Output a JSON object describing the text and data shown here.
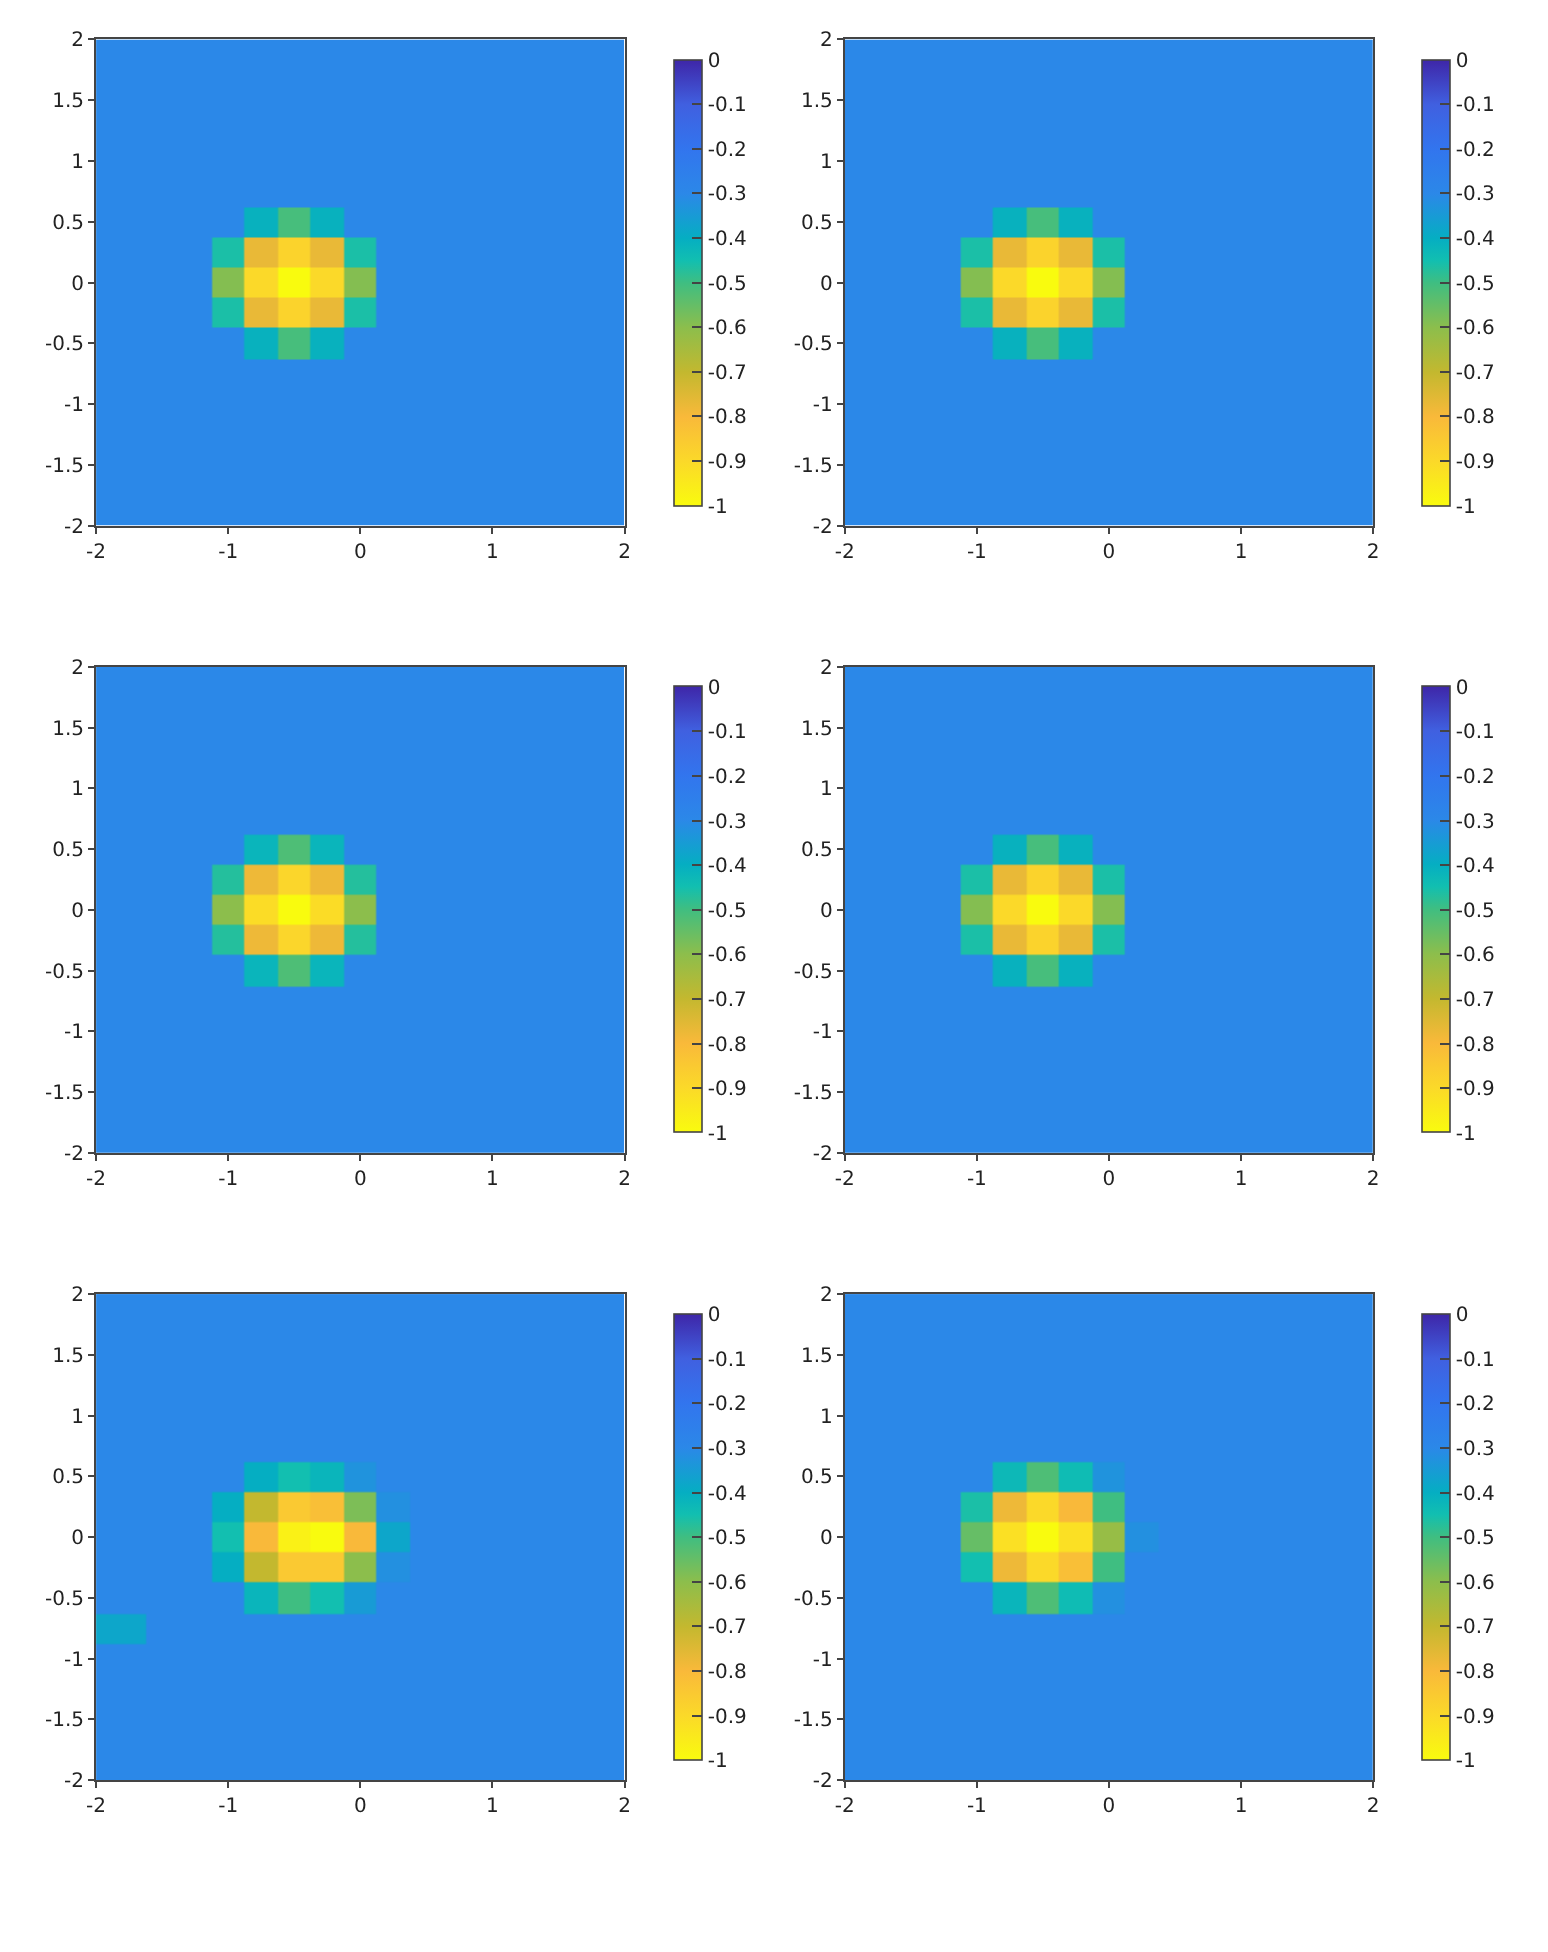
{
  "chart_data": [
    {
      "type": "heatmap",
      "x": [
        -1.75,
        -1.5,
        -1.25,
        -1,
        -0.75,
        -0.5,
        -0.25,
        0,
        0.25,
        0.5,
        0.75,
        1,
        1.25,
        1.5,
        1.75
      ],
      "y": [
        -1.75,
        -1.5,
        -1.25,
        -1,
        -0.75,
        -0.5,
        -0.25,
        0,
        0.25,
        0.5,
        0.75,
        1,
        1.25,
        1.5,
        1.75
      ],
      "xlim": [
        -2,
        2
      ],
      "ylim": [
        -2,
        2
      ],
      "xticks": [
        -2,
        -1,
        0,
        1,
        2
      ],
      "yticks": [
        -2,
        -1.5,
        -1,
        -0.5,
        0,
        0.5,
        1,
        1.5,
        2
      ],
      "clim": [
        -1,
        0
      ],
      "cticks": [
        0,
        -0.1,
        -0.2,
        -0.3,
        -0.4,
        -0.5,
        -0.6,
        -0.7,
        -0.8,
        -0.9,
        -1
      ],
      "cells": [
        [
          -0.3,
          -0.3,
          -0.3,
          -0.3,
          -0.3,
          -0.3,
          -0.3,
          -0.3,
          -0.3,
          -0.3,
          -0.3,
          -0.3,
          -0.3,
          -0.3,
          -0.3
        ],
        [
          -0.3,
          -0.3,
          -0.3,
          -0.3,
          -0.3,
          -0.3,
          -0.3,
          -0.3,
          -0.3,
          -0.3,
          -0.3,
          -0.3,
          -0.3,
          -0.3,
          -0.3
        ],
        [
          -0.3,
          -0.3,
          -0.3,
          -0.3,
          -0.3,
          -0.3,
          -0.3,
          -0.3,
          -0.3,
          -0.3,
          -0.3,
          -0.3,
          -0.3,
          -0.3,
          -0.3
        ],
        [
          -0.3,
          -0.3,
          -0.3,
          -0.3,
          -0.3,
          -0.3,
          -0.3,
          -0.3,
          -0.3,
          -0.3,
          -0.3,
          -0.3,
          -0.3,
          -0.3,
          -0.3
        ],
        [
          -0.3,
          -0.3,
          -0.3,
          -0.3,
          -0.3,
          -0.3,
          -0.3,
          -0.3,
          -0.3,
          -0.3,
          -0.3,
          -0.3,
          -0.3,
          -0.3,
          -0.3
        ],
        [
          -0.3,
          -0.3,
          -0.3,
          -0.3,
          -0.41,
          -0.51,
          -0.41,
          -0.3,
          -0.3,
          -0.3,
          -0.3,
          -0.3,
          -0.3,
          -0.3,
          -0.3
        ],
        [
          -0.3,
          -0.3,
          -0.3,
          -0.46,
          -0.77,
          -0.88,
          -0.77,
          -0.46,
          -0.3,
          -0.3,
          -0.3,
          -0.3,
          -0.3,
          -0.3,
          -0.3
        ],
        [
          -0.3,
          -0.3,
          -0.3,
          -0.59,
          -0.9,
          -1,
          -0.9,
          -0.59,
          -0.3,
          -0.3,
          -0.3,
          -0.3,
          -0.3,
          -0.3,
          -0.3
        ],
        [
          -0.3,
          -0.3,
          -0.3,
          -0.46,
          -0.77,
          -0.88,
          -0.77,
          -0.46,
          -0.3,
          -0.3,
          -0.3,
          -0.3,
          -0.3,
          -0.3,
          -0.3
        ],
        [
          -0.3,
          -0.3,
          -0.3,
          -0.3,
          -0.41,
          -0.51,
          -0.41,
          -0.3,
          -0.3,
          -0.3,
          -0.3,
          -0.3,
          -0.3,
          -0.3,
          -0.3
        ],
        [
          -0.3,
          -0.3,
          -0.3,
          -0.3,
          -0.3,
          -0.3,
          -0.3,
          -0.3,
          -0.3,
          -0.3,
          -0.3,
          -0.3,
          -0.3,
          -0.3,
          -0.3
        ],
        [
          -0.3,
          -0.3,
          -0.3,
          -0.3,
          -0.3,
          -0.3,
          -0.3,
          -0.3,
          -0.3,
          -0.3,
          -0.3,
          -0.3,
          -0.3,
          -0.3,
          -0.3
        ],
        [
          -0.3,
          -0.3,
          -0.3,
          -0.3,
          -0.3,
          -0.3,
          -0.3,
          -0.3,
          -0.3,
          -0.3,
          -0.3,
          -0.3,
          -0.3,
          -0.3,
          -0.3
        ],
        [
          -0.3,
          -0.3,
          -0.3,
          -0.3,
          -0.3,
          -0.3,
          -0.3,
          -0.3,
          -0.3,
          -0.3,
          -0.3,
          -0.3,
          -0.3,
          -0.3,
          -0.3
        ],
        [
          -0.3,
          -0.3,
          -0.3,
          -0.3,
          -0.3,
          -0.3,
          -0.3,
          -0.3,
          -0.3,
          -0.3,
          -0.3,
          -0.3,
          -0.3,
          -0.3,
          -0.3
        ]
      ]
    },
    {
      "type": "heatmap",
      "x": [
        -1.75,
        -1.5,
        -1.25,
        -1,
        -0.75,
        -0.5,
        -0.25,
        0,
        0.25,
        0.5,
        0.75,
        1,
        1.25,
        1.5,
        1.75
      ],
      "y": [
        -1.75,
        -1.5,
        -1.25,
        -1,
        -0.75,
        -0.5,
        -0.25,
        0,
        0.25,
        0.5,
        0.75,
        1,
        1.25,
        1.5,
        1.75
      ],
      "xlim": [
        -2,
        2
      ],
      "ylim": [
        -2,
        2
      ],
      "xticks": [
        -2,
        -1,
        0,
        1,
        2
      ],
      "yticks": [
        -2,
        -1.5,
        -1,
        -0.5,
        0,
        0.5,
        1,
        1.5,
        2
      ],
      "clim": [
        -1,
        0
      ],
      "cticks": [
        0,
        -0.1,
        -0.2,
        -0.3,
        -0.4,
        -0.5,
        -0.6,
        -0.7,
        -0.8,
        -0.9,
        -1
      ],
      "cells": [
        [
          -0.3,
          -0.3,
          -0.3,
          -0.3,
          -0.3,
          -0.3,
          -0.3,
          -0.3,
          -0.3,
          -0.3,
          -0.3,
          -0.3,
          -0.3,
          -0.3,
          -0.3
        ],
        [
          -0.3,
          -0.3,
          -0.3,
          -0.3,
          -0.3,
          -0.3,
          -0.3,
          -0.3,
          -0.3,
          -0.3,
          -0.3,
          -0.3,
          -0.3,
          -0.3,
          -0.3
        ],
        [
          -0.3,
          -0.3,
          -0.3,
          -0.3,
          -0.3,
          -0.3,
          -0.3,
          -0.3,
          -0.3,
          -0.3,
          -0.3,
          -0.3,
          -0.3,
          -0.3,
          -0.3
        ],
        [
          -0.3,
          -0.3,
          -0.3,
          -0.3,
          -0.3,
          -0.3,
          -0.3,
          -0.3,
          -0.3,
          -0.3,
          -0.3,
          -0.3,
          -0.3,
          -0.3,
          -0.3
        ],
        [
          -0.3,
          -0.3,
          -0.3,
          -0.3,
          -0.3,
          -0.3,
          -0.3,
          -0.3,
          -0.3,
          -0.3,
          -0.3,
          -0.3,
          -0.3,
          -0.3,
          -0.3
        ],
        [
          -0.3,
          -0.3,
          -0.3,
          -0.3,
          -0.41,
          -0.51,
          -0.41,
          -0.3,
          -0.3,
          -0.3,
          -0.3,
          -0.3,
          -0.3,
          -0.3,
          -0.3
        ],
        [
          -0.3,
          -0.3,
          -0.3,
          -0.46,
          -0.77,
          -0.88,
          -0.77,
          -0.46,
          -0.3,
          -0.3,
          -0.3,
          -0.3,
          -0.3,
          -0.3,
          -0.3
        ],
        [
          -0.3,
          -0.3,
          -0.3,
          -0.59,
          -0.9,
          -1,
          -0.9,
          -0.59,
          -0.3,
          -0.3,
          -0.3,
          -0.3,
          -0.3,
          -0.3,
          -0.3
        ],
        [
          -0.3,
          -0.3,
          -0.3,
          -0.46,
          -0.77,
          -0.88,
          -0.77,
          -0.46,
          -0.3,
          -0.3,
          -0.3,
          -0.3,
          -0.3,
          -0.3,
          -0.3
        ],
        [
          -0.3,
          -0.3,
          -0.3,
          -0.3,
          -0.41,
          -0.51,
          -0.41,
          -0.3,
          -0.3,
          -0.3,
          -0.3,
          -0.3,
          -0.3,
          -0.3,
          -0.3
        ],
        [
          -0.3,
          -0.3,
          -0.3,
          -0.3,
          -0.3,
          -0.3,
          -0.3,
          -0.3,
          -0.3,
          -0.3,
          -0.3,
          -0.3,
          -0.3,
          -0.3,
          -0.3
        ],
        [
          -0.3,
          -0.3,
          -0.3,
          -0.3,
          -0.3,
          -0.3,
          -0.3,
          -0.3,
          -0.3,
          -0.3,
          -0.3,
          -0.3,
          -0.3,
          -0.3,
          -0.3
        ],
        [
          -0.3,
          -0.3,
          -0.3,
          -0.3,
          -0.3,
          -0.3,
          -0.3,
          -0.3,
          -0.3,
          -0.3,
          -0.3,
          -0.3,
          -0.3,
          -0.3,
          -0.3
        ],
        [
          -0.3,
          -0.3,
          -0.3,
          -0.3,
          -0.3,
          -0.3,
          -0.3,
          -0.3,
          -0.3,
          -0.3,
          -0.3,
          -0.3,
          -0.3,
          -0.3,
          -0.3
        ],
        [
          -0.3,
          -0.3,
          -0.3,
          -0.3,
          -0.3,
          -0.3,
          -0.3,
          -0.3,
          -0.3,
          -0.3,
          -0.3,
          -0.3,
          -0.3,
          -0.3,
          -0.3
        ]
      ]
    },
    {
      "type": "heatmap",
      "x": [
        -1.75,
        -1.5,
        -1.25,
        -1,
        -0.75,
        -0.5,
        -0.25,
        0,
        0.25,
        0.5,
        0.75,
        1,
        1.25,
        1.5,
        1.75
      ],
      "y": [
        -1.75,
        -1.5,
        -1.25,
        -1,
        -0.75,
        -0.5,
        -0.25,
        0,
        0.25,
        0.5,
        0.75,
        1,
        1.25,
        1.5,
        1.75
      ],
      "xlim": [
        -2,
        2
      ],
      "ylim": [
        -2,
        2
      ],
      "xticks": [
        -2,
        -1,
        0,
        1,
        2
      ],
      "yticks": [
        -2,
        -1.5,
        -1,
        -0.5,
        0,
        0.5,
        1,
        1.5,
        2
      ],
      "clim": [
        -1,
        0
      ],
      "cticks": [
        0,
        -0.1,
        -0.2,
        -0.3,
        -0.4,
        -0.5,
        -0.6,
        -0.7,
        -0.8,
        -0.9,
        -1
      ],
      "cells": [
        [
          -0.3,
          -0.3,
          -0.3,
          -0.3,
          -0.3,
          -0.3,
          -0.3,
          -0.3,
          -0.3,
          -0.3,
          -0.3,
          -0.3,
          -0.3,
          -0.3,
          -0.3
        ],
        [
          -0.3,
          -0.3,
          -0.3,
          -0.3,
          -0.3,
          -0.3,
          -0.3,
          -0.3,
          -0.3,
          -0.3,
          -0.3,
          -0.3,
          -0.3,
          -0.3,
          -0.3
        ],
        [
          -0.3,
          -0.3,
          -0.3,
          -0.3,
          -0.3,
          -0.3,
          -0.3,
          -0.3,
          -0.3,
          -0.3,
          -0.3,
          -0.3,
          -0.3,
          -0.3,
          -0.3
        ],
        [
          -0.3,
          -0.3,
          -0.3,
          -0.3,
          -0.3,
          -0.3,
          -0.3,
          -0.3,
          -0.3,
          -0.3,
          -0.3,
          -0.3,
          -0.3,
          -0.3,
          -0.3
        ],
        [
          -0.3,
          -0.3,
          -0.3,
          -0.3,
          -0.3,
          -0.3,
          -0.3,
          -0.3,
          -0.3,
          -0.3,
          -0.3,
          -0.3,
          -0.3,
          -0.3,
          -0.3
        ],
        [
          -0.3,
          -0.3,
          -0.3,
          -0.3,
          -0.42,
          -0.52,
          -0.42,
          -0.3,
          -0.3,
          -0.3,
          -0.3,
          -0.3,
          -0.3,
          -0.3,
          -0.3
        ],
        [
          -0.3,
          -0.3,
          -0.3,
          -0.47,
          -0.78,
          -0.89,
          -0.78,
          -0.47,
          -0.3,
          -0.3,
          -0.3,
          -0.3,
          -0.3,
          -0.3,
          -0.3
        ],
        [
          -0.3,
          -0.3,
          -0.3,
          -0.6,
          -0.91,
          -1,
          -0.91,
          -0.6,
          -0.3,
          -0.3,
          -0.3,
          -0.3,
          -0.3,
          -0.3,
          -0.3
        ],
        [
          -0.3,
          -0.3,
          -0.3,
          -0.47,
          -0.78,
          -0.89,
          -0.78,
          -0.47,
          -0.3,
          -0.3,
          -0.3,
          -0.3,
          -0.3,
          -0.3,
          -0.3
        ],
        [
          -0.3,
          -0.3,
          -0.3,
          -0.3,
          -0.42,
          -0.52,
          -0.42,
          -0.3,
          -0.3,
          -0.3,
          -0.3,
          -0.3,
          -0.3,
          -0.3,
          -0.3
        ],
        [
          -0.3,
          -0.3,
          -0.3,
          -0.3,
          -0.3,
          -0.3,
          -0.3,
          -0.3,
          -0.3,
          -0.3,
          -0.3,
          -0.3,
          -0.3,
          -0.3,
          -0.3
        ],
        [
          -0.3,
          -0.3,
          -0.3,
          -0.3,
          -0.3,
          -0.3,
          -0.3,
          -0.3,
          -0.3,
          -0.3,
          -0.3,
          -0.3,
          -0.3,
          -0.3,
          -0.3
        ],
        [
          -0.3,
          -0.3,
          -0.3,
          -0.3,
          -0.3,
          -0.3,
          -0.3,
          -0.3,
          -0.3,
          -0.3,
          -0.3,
          -0.3,
          -0.3,
          -0.3,
          -0.3
        ],
        [
          -0.3,
          -0.3,
          -0.3,
          -0.3,
          -0.3,
          -0.3,
          -0.3,
          -0.3,
          -0.3,
          -0.3,
          -0.3,
          -0.3,
          -0.3,
          -0.3,
          -0.3
        ],
        [
          -0.3,
          -0.3,
          -0.3,
          -0.3,
          -0.3,
          -0.3,
          -0.3,
          -0.3,
          -0.3,
          -0.3,
          -0.3,
          -0.3,
          -0.3,
          -0.3,
          -0.3
        ]
      ]
    },
    {
      "type": "heatmap",
      "x": [
        -1.75,
        -1.5,
        -1.25,
        -1,
        -0.75,
        -0.5,
        -0.25,
        0,
        0.25,
        0.5,
        0.75,
        1,
        1.25,
        1.5,
        1.75
      ],
      "y": [
        -1.75,
        -1.5,
        -1.25,
        -1,
        -0.75,
        -0.5,
        -0.25,
        0,
        0.25,
        0.5,
        0.75,
        1,
        1.25,
        1.5,
        1.75
      ],
      "xlim": [
        -2,
        2
      ],
      "ylim": [
        -2,
        2
      ],
      "xticks": [
        -2,
        -1,
        0,
        1,
        2
      ],
      "yticks": [
        -2,
        -1.5,
        -1,
        -0.5,
        0,
        0.5,
        1,
        1.5,
        2
      ],
      "clim": [
        -1,
        0
      ],
      "cticks": [
        0,
        -0.1,
        -0.2,
        -0.3,
        -0.4,
        -0.5,
        -0.6,
        -0.7,
        -0.8,
        -0.9,
        -1
      ],
      "cells": [
        [
          -0.3,
          -0.3,
          -0.3,
          -0.3,
          -0.3,
          -0.3,
          -0.3,
          -0.3,
          -0.3,
          -0.3,
          -0.3,
          -0.3,
          -0.3,
          -0.3,
          -0.3
        ],
        [
          -0.3,
          -0.3,
          -0.3,
          -0.3,
          -0.3,
          -0.3,
          -0.3,
          -0.3,
          -0.3,
          -0.3,
          -0.3,
          -0.3,
          -0.3,
          -0.3,
          -0.3
        ],
        [
          -0.3,
          -0.3,
          -0.3,
          -0.3,
          -0.3,
          -0.3,
          -0.3,
          -0.3,
          -0.3,
          -0.3,
          -0.3,
          -0.3,
          -0.3,
          -0.3,
          -0.3
        ],
        [
          -0.3,
          -0.3,
          -0.3,
          -0.3,
          -0.3,
          -0.3,
          -0.3,
          -0.3,
          -0.3,
          -0.3,
          -0.3,
          -0.3,
          -0.3,
          -0.3,
          -0.3
        ],
        [
          -0.3,
          -0.3,
          -0.3,
          -0.3,
          -0.3,
          -0.3,
          -0.3,
          -0.3,
          -0.3,
          -0.3,
          -0.3,
          -0.3,
          -0.3,
          -0.3,
          -0.3
        ],
        [
          -0.3,
          -0.3,
          -0.3,
          -0.3,
          -0.41,
          -0.51,
          -0.41,
          -0.3,
          -0.3,
          -0.3,
          -0.3,
          -0.3,
          -0.3,
          -0.3,
          -0.3
        ],
        [
          -0.3,
          -0.3,
          -0.3,
          -0.46,
          -0.77,
          -0.88,
          -0.77,
          -0.46,
          -0.3,
          -0.3,
          -0.3,
          -0.3,
          -0.3,
          -0.3,
          -0.3
        ],
        [
          -0.3,
          -0.3,
          -0.3,
          -0.59,
          -0.9,
          -1,
          -0.9,
          -0.59,
          -0.3,
          -0.3,
          -0.3,
          -0.3,
          -0.3,
          -0.3,
          -0.3
        ],
        [
          -0.3,
          -0.3,
          -0.3,
          -0.46,
          -0.77,
          -0.88,
          -0.77,
          -0.46,
          -0.3,
          -0.3,
          -0.3,
          -0.3,
          -0.3,
          -0.3,
          -0.3
        ],
        [
          -0.3,
          -0.3,
          -0.3,
          -0.3,
          -0.41,
          -0.51,
          -0.41,
          -0.3,
          -0.3,
          -0.3,
          -0.3,
          -0.3,
          -0.3,
          -0.3,
          -0.3
        ],
        [
          -0.3,
          -0.3,
          -0.3,
          -0.3,
          -0.3,
          -0.3,
          -0.3,
          -0.3,
          -0.3,
          -0.3,
          -0.3,
          -0.3,
          -0.3,
          -0.3,
          -0.3
        ],
        [
          -0.3,
          -0.3,
          -0.3,
          -0.3,
          -0.3,
          -0.3,
          -0.3,
          -0.3,
          -0.3,
          -0.3,
          -0.3,
          -0.3,
          -0.3,
          -0.3,
          -0.3
        ],
        [
          -0.3,
          -0.3,
          -0.3,
          -0.3,
          -0.3,
          -0.3,
          -0.3,
          -0.3,
          -0.3,
          -0.3,
          -0.3,
          -0.3,
          -0.3,
          -0.3,
          -0.3
        ],
        [
          -0.3,
          -0.3,
          -0.3,
          -0.3,
          -0.3,
          -0.3,
          -0.3,
          -0.3,
          -0.3,
          -0.3,
          -0.3,
          -0.3,
          -0.3,
          -0.3,
          -0.3
        ],
        [
          -0.3,
          -0.3,
          -0.3,
          -0.3,
          -0.3,
          -0.3,
          -0.3,
          -0.3,
          -0.3,
          -0.3,
          -0.3,
          -0.3,
          -0.3,
          -0.3,
          -0.3
        ]
      ]
    },
    {
      "type": "heatmap",
      "x": [
        -1.75,
        -1.5,
        -1.25,
        -1,
        -0.75,
        -0.5,
        -0.25,
        0,
        0.25,
        0.5,
        0.75,
        1,
        1.25,
        1.5,
        1.75
      ],
      "y": [
        -1.75,
        -1.5,
        -1.25,
        -1,
        -0.75,
        -0.5,
        -0.25,
        0,
        0.25,
        0.5,
        0.75,
        1,
        1.25,
        1.5,
        1.75
      ],
      "xlim": [
        -2,
        2
      ],
      "ylim": [
        -2,
        2
      ],
      "xticks": [
        -2,
        -1,
        0,
        1,
        2
      ],
      "yticks": [
        -2,
        -1.5,
        -1,
        -0.5,
        0,
        0.5,
        1,
        1.5,
        2
      ],
      "clim": [
        -1,
        0
      ],
      "cticks": [
        0,
        -0.1,
        -0.2,
        -0.3,
        -0.4,
        -0.5,
        -0.6,
        -0.7,
        -0.8,
        -0.9,
        -1
      ],
      "cells": [
        [
          -0.3,
          -0.3,
          -0.3,
          -0.3,
          -0.3,
          -0.3,
          -0.3,
          -0.3,
          -0.3,
          -0.3,
          -0.3,
          -0.3,
          -0.3,
          -0.3,
          -0.3
        ],
        [
          -0.3,
          -0.3,
          -0.3,
          -0.3,
          -0.3,
          -0.3,
          -0.3,
          -0.3,
          -0.3,
          -0.3,
          -0.3,
          -0.3,
          -0.3,
          -0.3,
          -0.3
        ],
        [
          -0.3,
          -0.3,
          -0.3,
          -0.3,
          -0.3,
          -0.3,
          -0.3,
          -0.3,
          -0.3,
          -0.3,
          -0.3,
          -0.3,
          -0.3,
          -0.3,
          -0.3
        ],
        [
          -0.3,
          -0.3,
          -0.3,
          -0.3,
          -0.3,
          -0.3,
          -0.3,
          -0.3,
          -0.3,
          -0.3,
          -0.3,
          -0.3,
          -0.3,
          -0.3,
          -0.3
        ],
        [
          -0.38,
          -0.3,
          -0.3,
          -0.3,
          -0.3,
          -0.3,
          -0.3,
          -0.3,
          -0.3,
          -0.3,
          -0.3,
          -0.3,
          -0.3,
          -0.3,
          -0.3
        ],
        [
          -0.3,
          -0.3,
          -0.3,
          -0.3,
          -0.42,
          -0.5,
          -0.45,
          -0.35,
          -0.3,
          -0.3,
          -0.3,
          -0.3,
          -0.3,
          -0.3,
          -0.3
        ],
        [
          -0.3,
          -0.3,
          -0.3,
          -0.4,
          -0.7,
          -0.85,
          -0.85,
          -0.6,
          -0.32,
          -0.3,
          -0.3,
          -0.3,
          -0.3,
          -0.3,
          -0.3
        ],
        [
          -0.3,
          -0.3,
          -0.3,
          -0.45,
          -0.8,
          -0.97,
          -1,
          -0.8,
          -0.38,
          -0.3,
          -0.3,
          -0.3,
          -0.3,
          -0.3,
          -0.3
        ],
        [
          -0.3,
          -0.3,
          -0.3,
          -0.4,
          -0.7,
          -0.85,
          -0.82,
          -0.58,
          -0.32,
          -0.3,
          -0.3,
          -0.3,
          -0.3,
          -0.3,
          -0.3
        ],
        [
          -0.3,
          -0.3,
          -0.3,
          -0.3,
          -0.4,
          -0.45,
          -0.42,
          -0.33,
          -0.3,
          -0.3,
          -0.3,
          -0.3,
          -0.3,
          -0.3,
          -0.3
        ],
        [
          -0.3,
          -0.3,
          -0.3,
          -0.3,
          -0.3,
          -0.3,
          -0.3,
          -0.3,
          -0.3,
          -0.3,
          -0.3,
          -0.3,
          -0.3,
          -0.3,
          -0.3
        ],
        [
          -0.3,
          -0.3,
          -0.3,
          -0.3,
          -0.3,
          -0.3,
          -0.3,
          -0.3,
          -0.3,
          -0.3,
          -0.3,
          -0.3,
          -0.3,
          -0.3,
          -0.3
        ],
        [
          -0.3,
          -0.3,
          -0.3,
          -0.3,
          -0.3,
          -0.3,
          -0.3,
          -0.3,
          -0.3,
          -0.3,
          -0.3,
          -0.3,
          -0.3,
          -0.3,
          -0.3
        ],
        [
          -0.3,
          -0.3,
          -0.3,
          -0.3,
          -0.3,
          -0.3,
          -0.3,
          -0.3,
          -0.3,
          -0.3,
          -0.3,
          -0.3,
          -0.3,
          -0.3,
          -0.3
        ],
        [
          -0.3,
          -0.3,
          -0.3,
          -0.3,
          -0.3,
          -0.3,
          -0.3,
          -0.3,
          -0.3,
          -0.3,
          -0.3,
          -0.3,
          -0.3,
          -0.3,
          -0.3
        ]
      ]
    },
    {
      "type": "heatmap",
      "x": [
        -1.75,
        -1.5,
        -1.25,
        -1,
        -0.75,
        -0.5,
        -0.25,
        0,
        0.25,
        0.5,
        0.75,
        1,
        1.25,
        1.5,
        1.75
      ],
      "y": [
        -1.75,
        -1.5,
        -1.25,
        -1,
        -0.75,
        -0.5,
        -0.25,
        0,
        0.25,
        0.5,
        0.75,
        1,
        1.25,
        1.5,
        1.75
      ],
      "xlim": [
        -2,
        2
      ],
      "ylim": [
        -2,
        2
      ],
      "xticks": [
        -2,
        -1,
        0,
        1,
        2
      ],
      "yticks": [
        -2,
        -1.5,
        -1,
        -0.5,
        0,
        0.5,
        1,
        1.5,
        2
      ],
      "clim": [
        -1,
        0
      ],
      "cticks": [
        0,
        -0.1,
        -0.2,
        -0.3,
        -0.4,
        -0.5,
        -0.6,
        -0.7,
        -0.8,
        -0.9,
        -1
      ],
      "cells": [
        [
          -0.3,
          -0.3,
          -0.3,
          -0.3,
          -0.3,
          -0.3,
          -0.3,
          -0.3,
          -0.3,
          -0.3,
          -0.3,
          -0.3,
          -0.3,
          -0.3,
          -0.3
        ],
        [
          -0.3,
          -0.3,
          -0.3,
          -0.3,
          -0.3,
          -0.3,
          -0.3,
          -0.3,
          -0.3,
          -0.3,
          -0.3,
          -0.3,
          -0.3,
          -0.3,
          -0.3
        ],
        [
          -0.3,
          -0.3,
          -0.3,
          -0.3,
          -0.3,
          -0.3,
          -0.3,
          -0.3,
          -0.3,
          -0.3,
          -0.3,
          -0.3,
          -0.3,
          -0.3,
          -0.3
        ],
        [
          -0.3,
          -0.3,
          -0.3,
          -0.3,
          -0.3,
          -0.3,
          -0.3,
          -0.3,
          -0.3,
          -0.3,
          -0.3,
          -0.3,
          -0.3,
          -0.3,
          -0.3
        ],
        [
          -0.3,
          -0.3,
          -0.3,
          -0.3,
          -0.3,
          -0.3,
          -0.3,
          -0.3,
          -0.3,
          -0.3,
          -0.3,
          -0.3,
          -0.3,
          -0.3,
          -0.3
        ],
        [
          -0.3,
          -0.3,
          -0.3,
          -0.3,
          -0.42,
          -0.52,
          -0.44,
          -0.32,
          -0.3,
          -0.3,
          -0.3,
          -0.3,
          -0.3,
          -0.3,
          -0.3
        ],
        [
          -0.3,
          -0.3,
          -0.3,
          -0.45,
          -0.78,
          -0.9,
          -0.82,
          -0.5,
          -0.3,
          -0.3,
          -0.3,
          -0.3,
          -0.3,
          -0.3,
          -0.3
        ],
        [
          -0.3,
          -0.3,
          -0.3,
          -0.55,
          -0.92,
          -1,
          -0.92,
          -0.62,
          -0.32,
          -0.3,
          -0.3,
          -0.3,
          -0.3,
          -0.3,
          -0.3
        ],
        [
          -0.3,
          -0.3,
          -0.3,
          -0.46,
          -0.78,
          -0.9,
          -0.8,
          -0.5,
          -0.3,
          -0.3,
          -0.3,
          -0.3,
          -0.3,
          -0.3,
          -0.3
        ],
        [
          -0.3,
          -0.3,
          -0.3,
          -0.3,
          -0.43,
          -0.52,
          -0.44,
          -0.33,
          -0.3,
          -0.3,
          -0.3,
          -0.3,
          -0.3,
          -0.3,
          -0.3
        ],
        [
          -0.3,
          -0.3,
          -0.3,
          -0.3,
          -0.3,
          -0.3,
          -0.3,
          -0.3,
          -0.3,
          -0.3,
          -0.3,
          -0.3,
          -0.3,
          -0.3,
          -0.3
        ],
        [
          -0.3,
          -0.3,
          -0.3,
          -0.3,
          -0.3,
          -0.3,
          -0.3,
          -0.3,
          -0.3,
          -0.3,
          -0.3,
          -0.3,
          -0.3,
          -0.3,
          -0.3
        ],
        [
          -0.3,
          -0.3,
          -0.3,
          -0.3,
          -0.3,
          -0.3,
          -0.3,
          -0.3,
          -0.3,
          -0.3,
          -0.3,
          -0.3,
          -0.3,
          -0.3,
          -0.3
        ],
        [
          -0.3,
          -0.3,
          -0.3,
          -0.3,
          -0.3,
          -0.3,
          -0.3,
          -0.3,
          -0.3,
          -0.3,
          -0.3,
          -0.3,
          -0.3,
          -0.3,
          -0.3
        ],
        [
          -0.3,
          -0.3,
          -0.3,
          -0.3,
          -0.3,
          -0.3,
          -0.3,
          -0.3,
          -0.3,
          -0.3,
          -0.3,
          -0.3,
          -0.3,
          -0.3,
          -0.3
        ]
      ]
    }
  ]
}
